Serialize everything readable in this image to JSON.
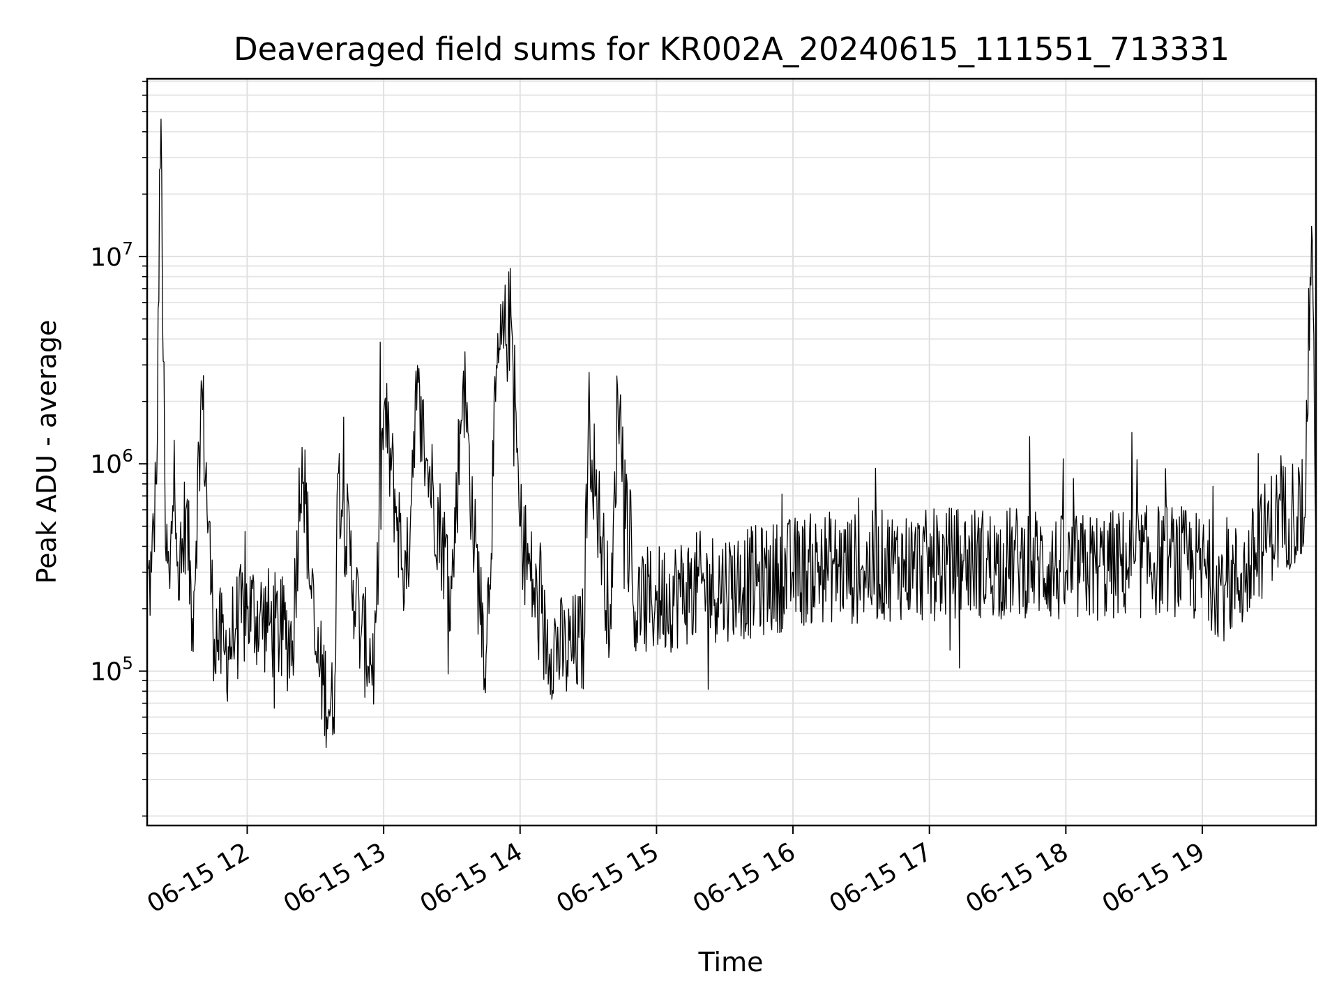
{
  "chart_data": {
    "type": "line",
    "title": "Deaveraged field sums for KR002A_20240615_111551_713331",
    "xlabel": "Time",
    "ylabel": "Peak ADU - average",
    "x_range": [
      "2024-06-15 11:16",
      "2024-06-15 19:50"
    ],
    "y_scale": "log",
    "ylim": [
      18000,
      72000000
    ],
    "grid": true,
    "line_color": "#000000",
    "x_ticks": [
      {
        "time": "2024-06-15 12:00",
        "label": "06-15 12"
      },
      {
        "time": "2024-06-15 13:00",
        "label": "06-15 13"
      },
      {
        "time": "2024-06-15 14:00",
        "label": "06-15 14"
      },
      {
        "time": "2024-06-15 15:00",
        "label": "06-15 15"
      },
      {
        "time": "2024-06-15 16:00",
        "label": "06-15 16"
      },
      {
        "time": "2024-06-15 17:00",
        "label": "06-15 17"
      },
      {
        "time": "2024-06-15 18:00",
        "label": "06-15 18"
      },
      {
        "time": "2024-06-15 19:00",
        "label": "06-15 19"
      }
    ],
    "y_ticks": [
      {
        "value": 100000,
        "base": "10",
        "exp": "5"
      },
      {
        "value": 1000000,
        "base": "10",
        "exp": "6"
      },
      {
        "value": 10000000,
        "base": "10",
        "exp": "7"
      }
    ],
    "series": [
      {
        "x": [
          "2024-06-15 11:16",
          "2024-06-15 11:18",
          "2024-06-15 11:20",
          "2024-06-15 11:22",
          "2024-06-15 11:24",
          "2024-06-15 11:26",
          "2024-06-15 11:28",
          "2024-06-15 11:30",
          "2024-06-15 11:33",
          "2024-06-15 11:36",
          "2024-06-15 11:40",
          "2024-06-15 11:45",
          "2024-06-15 11:50",
          "2024-06-15 11:55",
          "2024-06-15 12:00",
          "2024-06-15 12:10",
          "2024-06-15 12:20",
          "2024-06-15 12:24",
          "2024-06-15 12:30",
          "2024-06-15 12:38",
          "2024-06-15 12:40",
          "2024-06-15 12:50",
          "2024-06-15 12:56",
          "2024-06-15 13:00",
          "2024-06-15 13:10",
          "2024-06-15 13:14",
          "2024-06-15 13:20",
          "2024-06-15 13:30",
          "2024-06-15 13:35",
          "2024-06-15 13:40",
          "2024-06-15 13:45",
          "2024-06-15 13:50",
          "2024-06-15 13:56",
          "2024-06-15 14:00",
          "2024-06-15 14:10",
          "2024-06-15 14:20",
          "2024-06-15 14:28",
          "2024-06-15 14:30",
          "2024-06-15 14:40",
          "2024-06-15 14:43",
          "2024-06-15 14:50",
          "2024-06-15 15:00",
          "2024-06-15 15:15",
          "2024-06-15 15:30",
          "2024-06-15 15:45",
          "2024-06-15 16:00",
          "2024-06-15 16:15",
          "2024-06-15 16:30",
          "2024-06-15 16:45",
          "2024-06-15 17:00",
          "2024-06-15 17:15",
          "2024-06-15 17:30",
          "2024-06-15 17:45",
          "2024-06-15 18:00",
          "2024-06-15 18:15",
          "2024-06-15 18:30",
          "2024-06-15 18:45",
          "2024-06-15 19:00",
          "2024-06-15 19:10",
          "2024-06-15 19:20",
          "2024-06-15 19:30",
          "2024-06-15 19:40",
          "2024-06-15 19:45",
          "2024-06-15 19:48",
          "2024-06-15 19:50"
        ],
        "y": [
          250000,
          300000,
          800000,
          46000000,
          400000,
          250000,
          1300000,
          220000,
          600000,
          180000,
          2300000,
          170000,
          120000,
          160000,
          200000,
          170000,
          140000,
          1200000,
          120000,
          60000,
          900000,
          150000,
          110000,
          1800000,
          250000,
          2200000,
          900000,
          250000,
          2800000,
          400000,
          120000,
          2900000,
          5200000,
          500000,
          150000,
          120000,
          140000,
          1700000,
          160000,
          2300000,
          200000,
          220000,
          250000,
          260000,
          270000,
          300000,
          320000,
          310000,
          330000,
          320000,
          340000,
          330000,
          340000,
          300000,
          320000,
          330000,
          350000,
          310000,
          260000,
          300000,
          500000,
          600000,
          550000,
          14000000,
          450000
        ]
      }
    ]
  }
}
